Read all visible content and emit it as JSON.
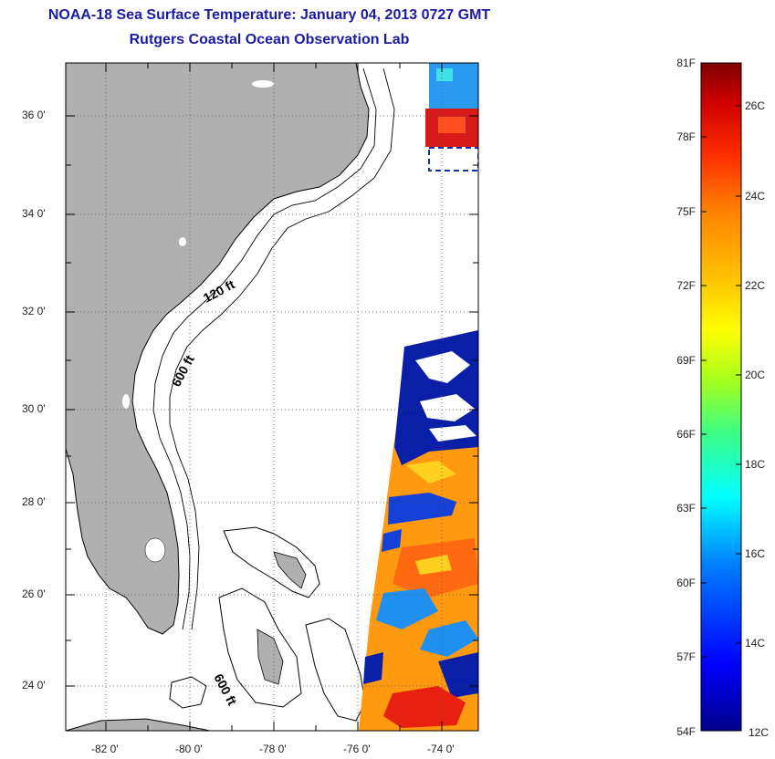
{
  "header": {
    "title": "NOAA-18 Sea Surface Temperature:  January 04, 2013 0727 GMT",
    "subtitle": "Rutgers Coastal Ocean Observation Lab"
  },
  "map": {
    "lat_ticks": [
      "36 0'",
      "34 0'",
      "32 0'",
      "30 0'",
      "28 0'",
      "26 0'",
      "24 0'"
    ],
    "lon_ticks": [
      "-82 0'",
      "-80 0'",
      "-78 0'",
      "-76 0'",
      "-74 0'"
    ],
    "contours": [
      "120 ft",
      "600 ft",
      "600 ft"
    ]
  },
  "colorbar": {
    "fahrenheit": [
      "81F",
      "78F",
      "75F",
      "72F",
      "69F",
      "66F",
      "63F",
      "60F",
      "57F",
      "54F"
    ],
    "celsius": [
      "26C",
      "24C",
      "22C",
      "20C",
      "18C",
      "16C",
      "14C",
      "12C"
    ],
    "colors": [
      "#00008b",
      "#0000ff",
      "#0080ff",
      "#00ffff",
      "#40ff80",
      "#a0ff20",
      "#ffff00",
      "#ffc000",
      "#ff8000",
      "#ff3000",
      "#d00000",
      "#800000"
    ]
  }
}
